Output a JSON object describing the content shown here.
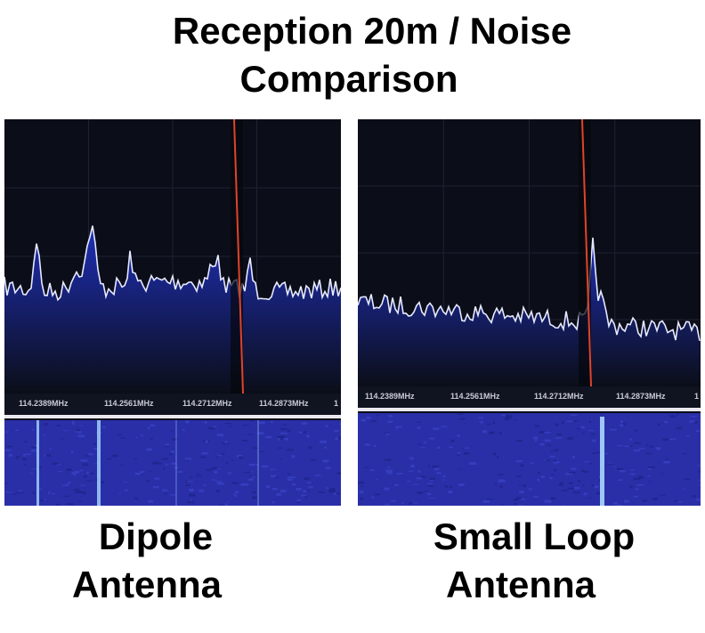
{
  "title_line1": "Reception 20m / Noise",
  "title_line2": "Comparison",
  "panels": [
    {
      "caption_line1": "Dipole",
      "caption_line2": "Antenna",
      "freqs": [
        "114.2389MHz",
        "114.2561MHz",
        "114.2712MHz",
        "114.2873MHz",
        "1"
      ]
    },
    {
      "caption_line1": "Small Loop",
      "caption_line2": "Antenna",
      "freqs": [
        "114.2389MHz",
        "114.2561MHz",
        "114.2712MHz",
        "114.2873MHz",
        "1"
      ]
    }
  ],
  "colors": {
    "background": "#0b0e18",
    "trace": "#e6e9ff",
    "fill": "#1f2fb8",
    "marker": "#e0432a",
    "waterfall": "#2a2fa8"
  }
}
